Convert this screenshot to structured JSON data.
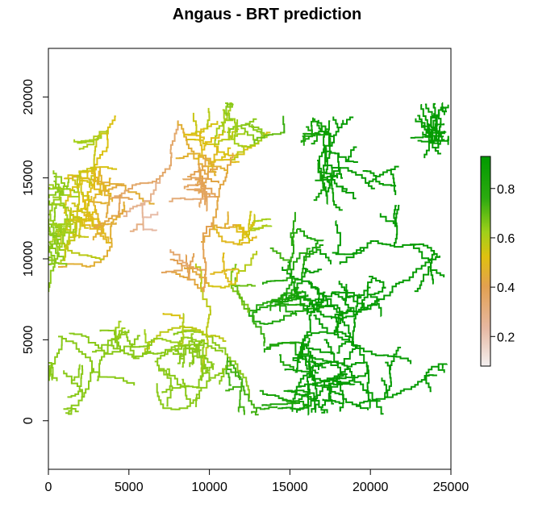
{
  "title": "Angaus - BRT prediction",
  "map": {
    "x_axis": {
      "min": 0,
      "max": 25000,
      "ticks": [
        "0",
        "5000",
        "10000",
        "15000",
        "20000",
        "25000"
      ],
      "tick_values": [
        0,
        5000,
        10000,
        15000,
        20000,
        25000
      ]
    },
    "y_axis": {
      "min": -3000,
      "max": 23000,
      "ticks": [
        "0",
        "5000",
        "10000",
        "15000",
        "20000"
      ],
      "tick_values": [
        0,
        5000,
        10000,
        15000,
        20000
      ]
    },
    "legend": {
      "placement": "right",
      "min": 0.08,
      "max": 0.93,
      "ticks": [
        "0.2",
        "0.4",
        "0.6",
        "0.8"
      ],
      "tick_values": [
        0.2,
        0.4,
        0.6,
        0.8
      ],
      "colors": [
        "#f2f2f2",
        "#e6b8a2",
        "#e2a050",
        "#e0c010",
        "#9fd01a",
        "#2caa10",
        "#009a00"
      ]
    },
    "river_color": "#1aa00a"
  }
}
